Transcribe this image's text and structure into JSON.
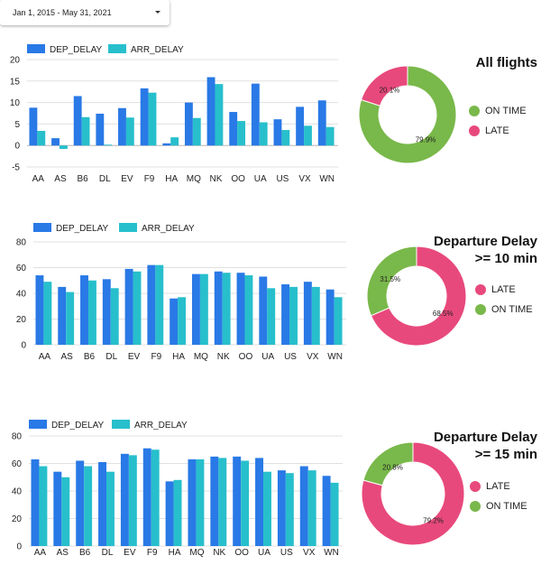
{
  "date_range": {
    "label": "Jan 1, 2015 - May 31, 2021"
  },
  "colors": {
    "dep": "#2979e6",
    "arr": "#27bfcc",
    "on_time": "#79b84a",
    "late": "#e8497c"
  },
  "chart_data": [
    {
      "type": "bar",
      "categories": [
        "AA",
        "AS",
        "B6",
        "DL",
        "EV",
        "F9",
        "HA",
        "MQ",
        "NK",
        "OO",
        "UA",
        "US",
        "VX",
        "WN"
      ],
      "series": [
        {
          "name": "DEP_DELAY",
          "values": [
            8.8,
            1.7,
            11.5,
            7.4,
            8.7,
            13.3,
            0.5,
            10.0,
            15.9,
            7.8,
            14.4,
            6.1,
            9.0,
            10.5
          ]
        },
        {
          "name": "ARR_DELAY",
          "values": [
            3.4,
            -0.8,
            6.6,
            0.2,
            6.5,
            12.3,
            1.9,
            6.4,
            14.3,
            5.7,
            5.4,
            3.6,
            4.6,
            4.3
          ]
        }
      ],
      "ylim": [
        -5,
        20
      ],
      "yticks": [
        -5,
        0,
        5,
        10,
        15,
        20
      ],
      "grid": true,
      "legend_position": "top-left"
    },
    {
      "type": "bar",
      "categories": [
        "AA",
        "AS",
        "B6",
        "DL",
        "EV",
        "F9",
        "HA",
        "MQ",
        "NK",
        "OO",
        "UA",
        "US",
        "VX",
        "WN"
      ],
      "series": [
        {
          "name": "DEP_DELAY",
          "values": [
            54,
            45,
            54,
            51,
            59,
            62,
            36,
            55,
            57,
            56,
            53,
            47,
            49,
            43
          ]
        },
        {
          "name": "ARR_DELAY",
          "values": [
            49,
            41,
            50,
            44,
            57,
            62,
            37,
            55,
            56,
            54,
            44,
            45,
            45,
            37
          ]
        }
      ],
      "ylim": [
        0,
        80
      ],
      "yticks": [
        0,
        20,
        40,
        60,
        80
      ],
      "grid": true,
      "legend_position": "top-left"
    },
    {
      "type": "bar",
      "categories": [
        "AA",
        "AS",
        "B6",
        "DL",
        "EV",
        "F9",
        "HA",
        "MQ",
        "NK",
        "OO",
        "UA",
        "US",
        "VX",
        "WN"
      ],
      "series": [
        {
          "name": "DEP_DELAY",
          "values": [
            63,
            54,
            62,
            61,
            67,
            71,
            47,
            63,
            65,
            65,
            64,
            55,
            58,
            51
          ]
        },
        {
          "name": "ARR_DELAY",
          "values": [
            58,
            50,
            58,
            54,
            66,
            70,
            48,
            63,
            64,
            62,
            54,
            53,
            55,
            46
          ]
        }
      ],
      "ylim": [
        0,
        80
      ],
      "yticks": [
        0,
        20,
        40,
        60,
        80
      ],
      "grid": true,
      "legend_position": "top-left"
    },
    {
      "type": "pie",
      "title": "All flights",
      "slices": [
        {
          "label": "ON TIME",
          "value": 79.9,
          "display": "79.9%"
        },
        {
          "label": "LATE",
          "value": 20.1,
          "display": "20.1%"
        }
      ],
      "legend_position": "right"
    },
    {
      "type": "pie",
      "title": "Departure Delay\n>= 10 min",
      "slices": [
        {
          "label": "LATE",
          "value": 68.5,
          "display": "68.5%"
        },
        {
          "label": "ON TIME",
          "value": 31.5,
          "display": "31.5%"
        }
      ],
      "legend_position": "right"
    },
    {
      "type": "pie",
      "title": "Departure Delay\n>= 15 min",
      "slices": [
        {
          "label": "LATE",
          "value": 79.2,
          "display": "79.2%"
        },
        {
          "label": "ON TIME",
          "value": 20.8,
          "display": "20.8%"
        }
      ],
      "legend_position": "right"
    }
  ]
}
